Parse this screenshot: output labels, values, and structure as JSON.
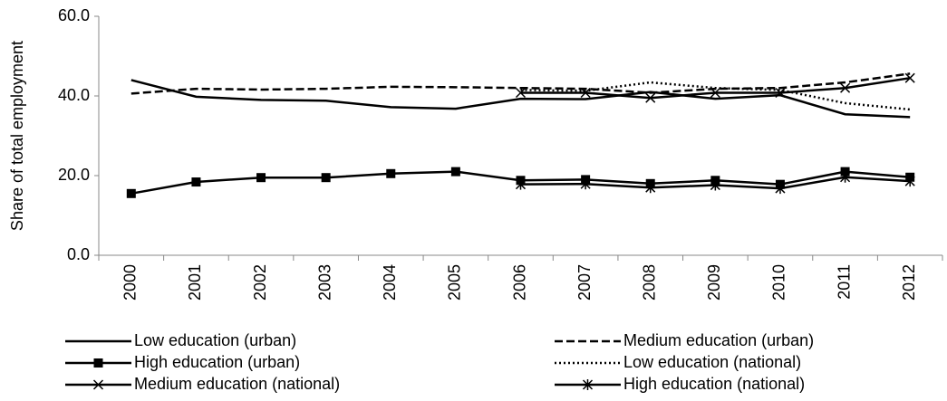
{
  "chart_data": {
    "type": "line",
    "y_label": "Share of total employment",
    "categories": [
      "2000",
      "2001",
      "2002",
      "2003",
      "2004",
      "2005",
      "2006",
      "2007",
      "2008",
      "2009",
      "2010",
      "2011",
      "2012"
    ],
    "ylim": [
      0,
      60
    ],
    "yticks": [
      {
        "value": 0,
        "label": "0.0"
      },
      {
        "value": 20,
        "label": "20.0"
      },
      {
        "value": 40,
        "label": "40.0"
      },
      {
        "value": 60,
        "label": "60.0"
      }
    ],
    "grid": false,
    "series": [
      {
        "name": "Low education (urban)",
        "color": "#000000",
        "dash": "solid",
        "marker": "none",
        "values": [
          44.0,
          39.8,
          39.0,
          38.8,
          37.2,
          36.8,
          39.3,
          39.2,
          41.0,
          39.3,
          40.2,
          35.4,
          34.7
        ]
      },
      {
        "name": "Medium education (urban)",
        "color": "#000000",
        "dash": "dashed",
        "marker": "none",
        "values": [
          40.6,
          41.8,
          41.6,
          41.8,
          42.3,
          42.2,
          42.0,
          41.8,
          40.8,
          41.8,
          42.0,
          43.4,
          45.6
        ]
      },
      {
        "name": "High education (urban)",
        "color": "#000000",
        "dash": "solid",
        "marker": "square",
        "values": [
          15.5,
          18.4,
          19.5,
          19.5,
          20.5,
          21.0,
          18.8,
          19.0,
          18.0,
          18.8,
          17.8,
          21.0,
          19.6
        ]
      },
      {
        "name": "Low education (national)",
        "color": "#000000",
        "dash": "dotted",
        "marker": "none",
        "values": [
          null,
          null,
          null,
          null,
          null,
          null,
          41.5,
          41.3,
          43.4,
          42.0,
          41.5,
          38.2,
          36.6
        ]
      },
      {
        "name": "Medium education (national)",
        "color": "#000000",
        "dash": "solid",
        "marker": "x",
        "values": [
          null,
          null,
          null,
          null,
          null,
          null,
          40.8,
          40.8,
          39.5,
          40.8,
          40.8,
          42.0,
          44.5
        ]
      },
      {
        "name": "High education (national)",
        "color": "#000000",
        "dash": "solid",
        "marker": "star",
        "values": [
          null,
          null,
          null,
          null,
          null,
          null,
          17.8,
          17.9,
          17.0,
          17.6,
          16.8,
          19.6,
          18.6
        ]
      }
    ]
  }
}
